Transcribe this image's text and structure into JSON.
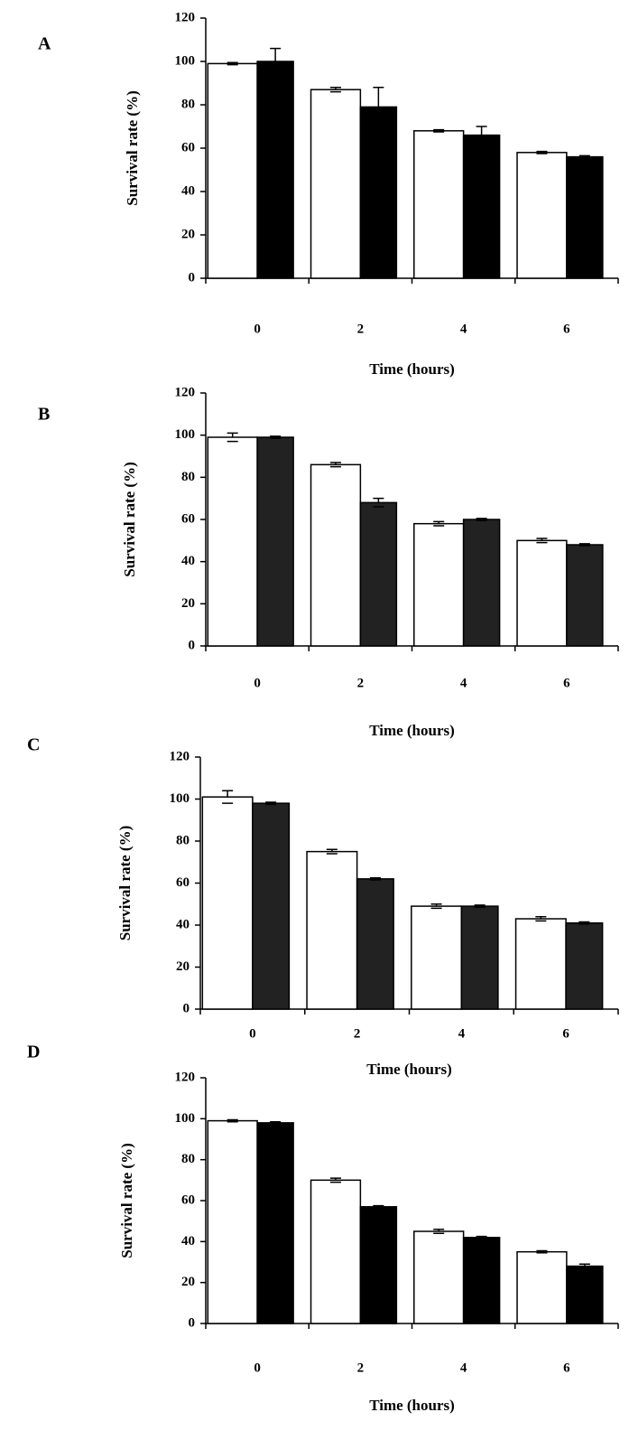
{
  "chart_data": [
    {
      "type": "bar",
      "panel_label": "A",
      "xlabel": "Time (hours)",
      "ylabel": "Survival rate (%)",
      "categories": [
        "0",
        "2",
        "4",
        "6"
      ],
      "series": [
        {
          "color": "#ffffff",
          "values": [
            99,
            87,
            68,
            58
          ],
          "errors": [
            0.5,
            1,
            0.5,
            0.5
          ]
        },
        {
          "color": "#000000",
          "values": [
            100,
            79,
            66,
            56
          ],
          "errors": [
            6,
            9,
            4,
            0.5
          ]
        }
      ],
      "ylim": [
        0,
        120
      ],
      "yticks": [
        0,
        20,
        40,
        60,
        80,
        100,
        120
      ]
    },
    {
      "type": "bar",
      "panel_label": "B",
      "xlabel": "Time (hours)",
      "ylabel": "Survival rate (%)",
      "categories": [
        "0",
        "2",
        "4",
        "6"
      ],
      "series": [
        {
          "color": "#ffffff",
          "values": [
            99,
            86,
            58,
            50
          ],
          "errors": [
            2,
            1,
            1,
            1
          ]
        },
        {
          "color": "#222222",
          "values": [
            99,
            68,
            60,
            48
          ],
          "errors": [
            0.5,
            2,
            0.5,
            0.5
          ]
        }
      ],
      "ylim": [
        0,
        120
      ],
      "yticks": [
        0,
        20,
        40,
        60,
        80,
        100,
        120
      ]
    },
    {
      "type": "bar",
      "panel_label": "C",
      "xlabel": "Time (hours)",
      "ylabel": "Survival rate (%)",
      "categories": [
        "0",
        "2",
        "4",
        "6"
      ],
      "series": [
        {
          "color": "#ffffff",
          "values": [
            101,
            75,
            49,
            43
          ],
          "errors": [
            3,
            1,
            1,
            1
          ]
        },
        {
          "color": "#222222",
          "values": [
            98,
            62,
            49,
            41
          ],
          "errors": [
            0.5,
            0.5,
            0.5,
            0.5
          ]
        }
      ],
      "ylim": [
        0,
        120
      ],
      "yticks": [
        0,
        20,
        40,
        60,
        80,
        100,
        120
      ]
    },
    {
      "type": "bar",
      "panel_label": "D",
      "xlabel": "Time (hours)",
      "ylabel": "Survival rate (%)",
      "categories": [
        "0",
        "2",
        "4",
        "6"
      ],
      "series": [
        {
          "color": "#ffffff",
          "values": [
            99,
            70,
            45,
            35
          ],
          "errors": [
            0.5,
            1,
            1,
            0.5
          ]
        },
        {
          "color": "#000000",
          "values": [
            98,
            57,
            42,
            28
          ],
          "errors": [
            0.5,
            0.5,
            0.5,
            1
          ]
        }
      ],
      "ylim": [
        0,
        120
      ],
      "yticks": [
        0,
        20,
        40,
        60,
        80,
        100,
        120
      ]
    }
  ]
}
